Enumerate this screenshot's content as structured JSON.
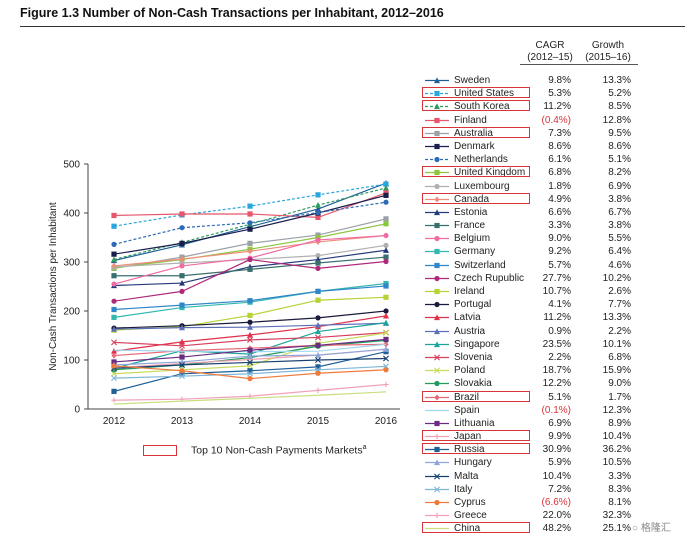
{
  "title": "Figure 1.3 Number of Non-Cash Transactions per Inhabitant, 2012–2016",
  "headers": {
    "cagr_line1": "CAGR",
    "cagr_line2": "(2012–15)",
    "growth_line1": "Growth",
    "growth_line2": "(2015–16)"
  },
  "footnote": {
    "text": "Top 10 Non-Cash Payments Markets",
    "superscript": "a"
  },
  "watermark": "格隆汇",
  "colors": {
    "highlight": "#d9343a",
    "axis": "#555555"
  },
  "chart_data": {
    "type": "line",
    "title": "Figure 1.3 Number of Non-Cash Transactions per Inhabitant, 2012–2016",
    "xlabel": "",
    "ylabel": "Non-Cash Transactions per Inhabitant",
    "x": [
      "2012",
      "2013",
      "2014",
      "2015",
      "2016"
    ],
    "ylim": [
      0,
      500
    ],
    "yticks": [
      0,
      100,
      200,
      300,
      400,
      500
    ],
    "series": [
      {
        "name": "Sweden",
        "values": [
          303,
          335,
          372,
          408,
          461
        ],
        "cagr": "9.8%",
        "growth": "13.3%",
        "color": "#1f5f96",
        "marker": "triangle",
        "dashed": false,
        "top10": false
      },
      {
        "name": "United States",
        "values": [
          373,
          396,
          414,
          437,
          459
        ],
        "cagr": "5.3%",
        "growth": "5.2%",
        "color": "#29a6de",
        "marker": "square",
        "dashed": true,
        "top10": true
      },
      {
        "name": "South Korea",
        "values": [
          305,
          340,
          377,
          416,
          451
        ],
        "cagr": "11.2%",
        "growth": "8.5%",
        "color": "#2e9b5e",
        "marker": "triangle",
        "dashed": true,
        "top10": true
      },
      {
        "name": "Finland",
        "values": [
          395,
          398,
          398,
          391,
          441
        ],
        "cagr": "(0.4%)",
        "growth": "12.8%",
        "color": "#e8556b",
        "marker": "square",
        "dashed": false,
        "top10": false
      },
      {
        "name": "Australia",
        "values": [
          287,
          310,
          338,
          355,
          388
        ],
        "cagr": "7.3%",
        "growth": "9.5%",
        "color": "#9aa1a8",
        "marker": "square",
        "dashed": false,
        "top10": true
      },
      {
        "name": "Denmark",
        "values": [
          316,
          338,
          367,
          400,
          436
        ],
        "cagr": "8.6%",
        "growth": "8.6%",
        "color": "#1a1f4d",
        "marker": "square",
        "dashed": false,
        "top10": false
      },
      {
        "name": "Netherlands",
        "values": [
          336,
          370,
          380,
          401,
          422
        ],
        "cagr": "6.1%",
        "growth": "5.1%",
        "color": "#2b6bb5",
        "marker": "circle",
        "dashed": true,
        "top10": false
      },
      {
        "name": "United Kingdom",
        "values": [
          288,
          305,
          326,
          350,
          378
        ],
        "cagr": "6.8%",
        "growth": "8.2%",
        "color": "#8cc63f",
        "marker": "square",
        "dashed": false,
        "top10": true
      },
      {
        "name": "Luxembourg",
        "values": [
          290,
          298,
          305,
          313,
          334
        ],
        "cagr": "1.8%",
        "growth": "6.9%",
        "color": "#b0b0b0",
        "marker": "circle",
        "dashed": false,
        "top10": false
      },
      {
        "name": "Canada",
        "values": [
          292,
          306,
          322,
          341,
          354
        ],
        "cagr": "4.9%",
        "growth": "3.8%",
        "color": "#f08c7a",
        "marker": "diamond",
        "dashed": false,
        "top10": true
      },
      {
        "name": "Estonia",
        "values": [
          252,
          257,
          290,
          305,
          324
        ],
        "cagr": "6.6%",
        "growth": "6.7%",
        "color": "#243a7a",
        "marker": "triangle",
        "dashed": false,
        "top10": false
      },
      {
        "name": "France",
        "values": [
          272,
          272,
          285,
          298,
          310
        ],
        "cagr": "3.3%",
        "growth": "3.8%",
        "color": "#3a6f6f",
        "marker": "square",
        "dashed": false,
        "top10": false
      },
      {
        "name": "Belgium",
        "values": [
          255,
          292,
          308,
          345,
          354
        ],
        "cagr": "9.0%",
        "growth": "5.5%",
        "color": "#f06aa3",
        "marker": "circle",
        "dashed": false,
        "top10": false
      },
      {
        "name": "Germany",
        "values": [
          187,
          207,
          218,
          240,
          256
        ],
        "cagr": "9.2%",
        "growth": "6.4%",
        "color": "#33b8b0",
        "marker": "square",
        "dashed": false,
        "top10": false
      },
      {
        "name": "Switzerland",
        "values": [
          203,
          212,
          221,
          240,
          251
        ],
        "cagr": "5.7%",
        "growth": "4.6%",
        "color": "#2f86c8",
        "marker": "square",
        "dashed": false,
        "top10": false
      },
      {
        "name": "Czech Rupublic",
        "values": [
          220,
          240,
          305,
          287,
          301
        ],
        "cagr": "27.7%",
        "growth": "10.2%",
        "color": "#b0287a",
        "marker": "circle",
        "dashed": false,
        "top10": false
      },
      {
        "name": "Ireland",
        "values": [
          161,
          168,
          191,
          222,
          228
        ],
        "cagr": "10.7%",
        "growth": "2.6%",
        "color": "#b5d334",
        "marker": "square",
        "dashed": false,
        "top10": false
      },
      {
        "name": "Portugal",
        "values": [
          165,
          170,
          177,
          186,
          200
        ],
        "cagr": "4.1%",
        "growth": "7.7%",
        "color": "#1a1a3a",
        "marker": "circle",
        "dashed": false,
        "top10": false
      },
      {
        "name": "Latvia",
        "values": [
          118,
          137,
          151,
          168,
          190
        ],
        "cagr": "11.2%",
        "growth": "13.3%",
        "color": "#e0304a",
        "marker": "triangle",
        "dashed": false,
        "top10": false
      },
      {
        "name": "Austria",
        "values": [
          163,
          166,
          167,
          171,
          175
        ],
        "cagr": "0.9%",
        "growth": "2.2%",
        "color": "#5d6fb7",
        "marker": "triangle",
        "dashed": false,
        "top10": false
      },
      {
        "name": "Singapore",
        "values": [
          83,
          119,
          112,
          158,
          176
        ],
        "cagr": "23.5%",
        "growth": "10.1%",
        "color": "#1ba69c",
        "marker": "triangle",
        "dashed": false,
        "top10": false
      },
      {
        "name": "Slovenia",
        "values": [
          136,
          129,
          141,
          146,
          156
        ],
        "cagr": "2.2%",
        "growth": "6.8%",
        "color": "#d6405e",
        "marker": "x",
        "dashed": false,
        "top10": false
      },
      {
        "name": "Poland",
        "values": [
          72,
          80,
          88,
          134,
          155
        ],
        "cagr": "18.7%",
        "growth": "15.9%",
        "color": "#c8dc5a",
        "marker": "x",
        "dashed": false,
        "top10": false
      },
      {
        "name": "Slovakia",
        "values": [
          80,
          90,
          105,
          128,
          140
        ],
        "cagr": "12.2%",
        "growth": "9.0%",
        "color": "#1f9b5c",
        "marker": "circle",
        "dashed": false,
        "top10": false
      },
      {
        "name": "Brazil",
        "values": [
          109,
          119,
          124,
          130,
          132
        ],
        "cagr": "5.1%",
        "growth": "1.7%",
        "color": "#e86a7a",
        "marker": "diamond",
        "dashed": false,
        "top10": true
      },
      {
        "name": "Spain",
        "values": [
          120,
          118,
          117,
          118,
          132
        ],
        "cagr": "(0.1%)",
        "growth": "12.3%",
        "color": "#9fd8f0",
        "marker": "none",
        "dashed": false,
        "top10": false
      },
      {
        "name": "Lithuania",
        "values": [
          96,
          106,
          120,
          130,
          142
        ],
        "cagr": "6.9%",
        "growth": "8.9%",
        "color": "#6a2c80",
        "marker": "square",
        "dashed": false,
        "top10": false
      },
      {
        "name": "Japan",
        "values": [
          84,
          93,
          101,
          110,
          122
        ],
        "cagr": "9.9%",
        "growth": "10.4%",
        "color": "#f0a2b0",
        "marker": "plus",
        "dashed": false,
        "top10": true
      },
      {
        "name": "Russia",
        "values": [
          36,
          72,
          78,
          86,
          117
        ],
        "cagr": "30.9%",
        "growth": "36.2%",
        "color": "#1f5f96",
        "marker": "square",
        "dashed": false,
        "top10": true
      },
      {
        "name": "Hungary",
        "values": [
          90,
          96,
          108,
          110,
          122
        ],
        "cagr": "5.9%",
        "growth": "10.5%",
        "color": "#8fa6d8",
        "marker": "triangle",
        "dashed": false,
        "top10": false
      },
      {
        "name": "Malta",
        "values": [
          83,
          90,
          95,
          100,
          103
        ],
        "cagr": "10.4%",
        "growth": "3.3%",
        "color": "#16406e",
        "marker": "x",
        "dashed": false,
        "top10": false
      },
      {
        "name": "Italy",
        "values": [
          63,
          67,
          72,
          80,
          87
        ],
        "cagr": "7.2%",
        "growth": "8.3%",
        "color": "#7fb5d8",
        "marker": "x",
        "dashed": false,
        "top10": false
      },
      {
        "name": "Cyprus",
        "values": [
          88,
          78,
          62,
          73,
          80
        ],
        "cagr": "(6.6%)",
        "growth": "8.1%",
        "color": "#ef7a3c",
        "marker": "circle",
        "dashed": false,
        "top10": false
      },
      {
        "name": "Greece",
        "values": [
          18,
          20,
          26,
          38,
          50
        ],
        "cagr": "22.0%",
        "growth": "32.3%",
        "color": "#f2a0b8",
        "marker": "plus",
        "dashed": false,
        "top10": false
      },
      {
        "name": "China",
        "values": [
          10,
          16,
          22,
          28,
          35
        ],
        "cagr": "48.2%",
        "growth": "25.1%",
        "color": "#c9df7e",
        "marker": "none",
        "dashed": false,
        "top10": true
      }
    ]
  }
}
